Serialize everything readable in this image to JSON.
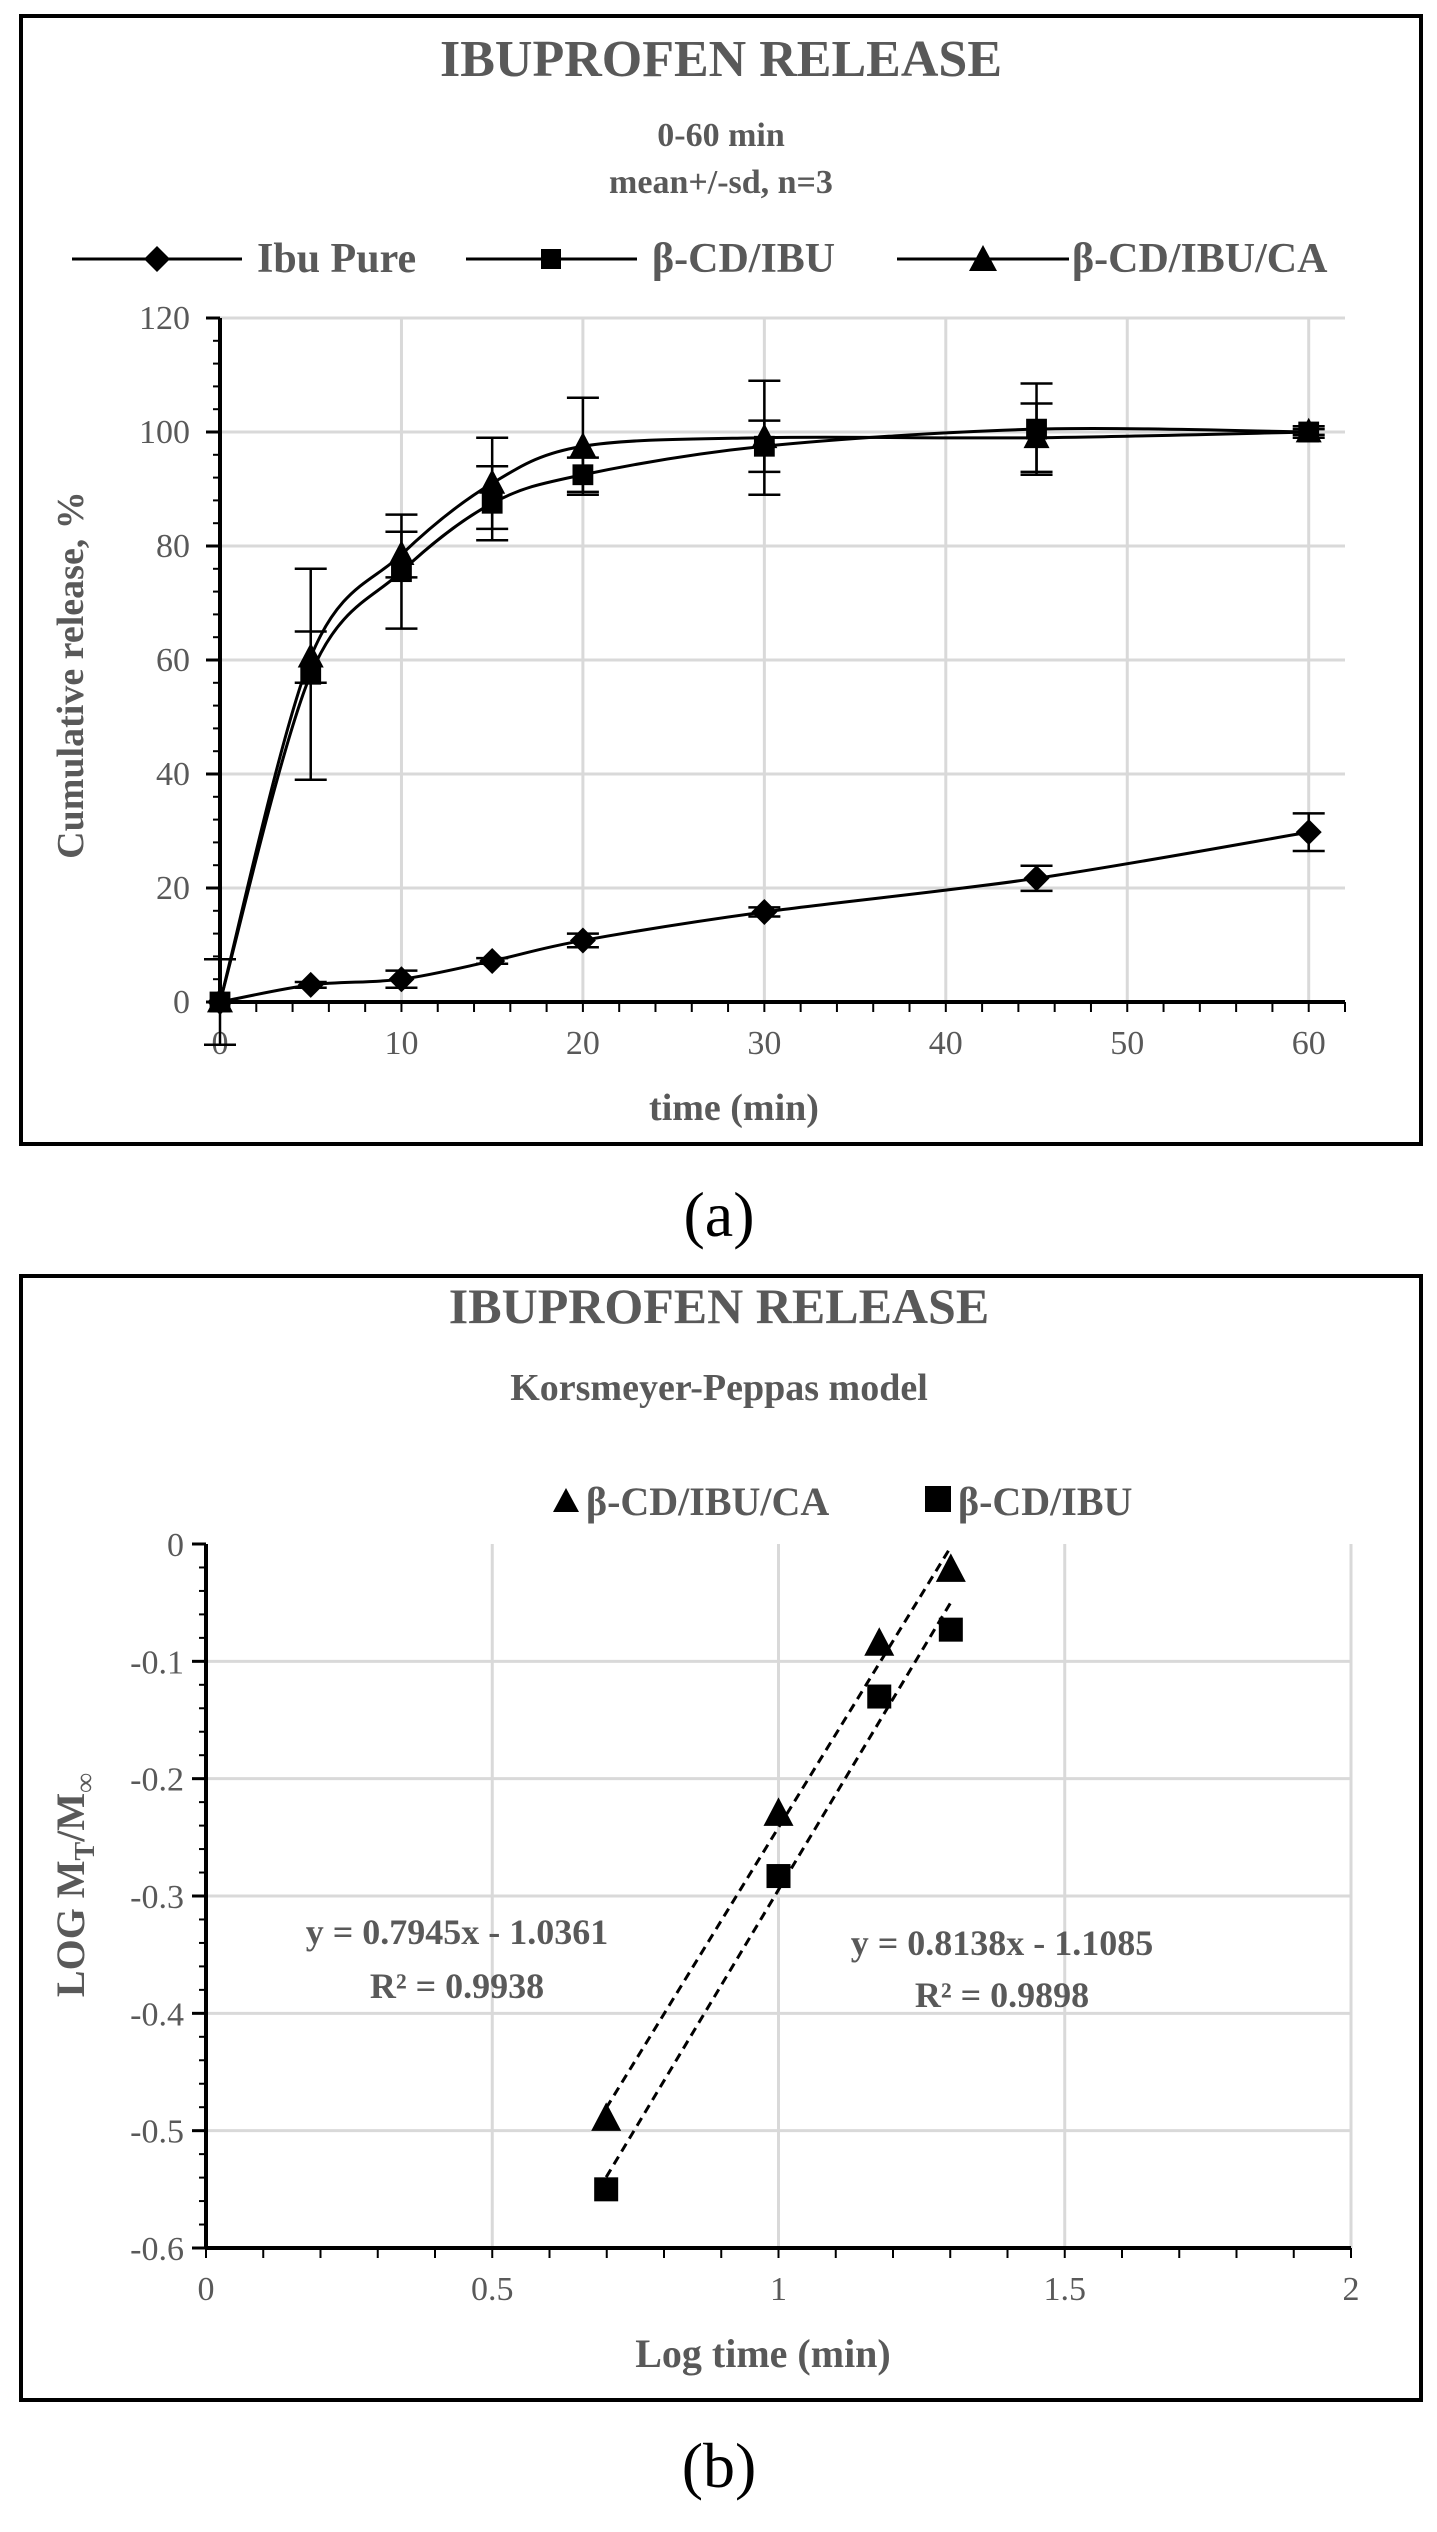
{
  "panel_a_label": "(a)",
  "panel_b_label": "(b)",
  "chart_data": [
    {
      "type": "line",
      "title": "IBUPROFEN RELEASE",
      "subtitle": [
        "0-60 min",
        "mean+/-sd, n=3"
      ],
      "xlabel": "time (min)",
      "ylabel": "Cumulative release, %",
      "xlim": [
        0,
        62
      ],
      "ylim": [
        0,
        120
      ],
      "xticks": [
        "0",
        "10",
        "20",
        "30",
        "40",
        "50",
        "60"
      ],
      "yticks": [
        "0",
        "20",
        "40",
        "60",
        "80",
        "100",
        "120"
      ],
      "grid": true,
      "legend_position": "top",
      "series": [
        {
          "name": "Ibu Pure",
          "marker": "diamond",
          "x": [
            0,
            5,
            10,
            15,
            20,
            30,
            45,
            60
          ],
          "y": [
            0,
            3,
            4,
            7.2,
            10.8,
            15.8,
            21.7,
            29.8
          ],
          "err": [
            0,
            0.5,
            1.5,
            0.5,
            1.2,
            0.8,
            2.2,
            3.3
          ]
        },
        {
          "name": "β-CD/IBU",
          "marker": "square",
          "x": [
            0,
            5,
            10,
            15,
            20,
            30,
            45,
            60
          ],
          "y": [
            0,
            57.5,
            75.5,
            87.5,
            92.5,
            97.5,
            100.5,
            100
          ],
          "err": [
            0,
            18.5,
            10,
            6.5,
            3,
            4.5,
            8,
            0.5
          ]
        },
        {
          "name": "β-CD/IBU/CA",
          "marker": "triangle",
          "x": [
            0,
            5,
            10,
            15,
            20,
            30,
            45,
            60
          ],
          "y": [
            0,
            60.5,
            78.5,
            91,
            97.5,
            99,
            99,
            100
          ],
          "err": [
            7.5,
            4.5,
            4,
            8,
            8.5,
            10,
            6,
            1
          ]
        }
      ]
    },
    {
      "type": "scatter",
      "title": "IBUPROFEN RELEASE",
      "subtitle": [
        "Korsmeyer-Peppas model"
      ],
      "xlabel": "Log time (min)",
      "ylabel_main": "LOG M",
      "ylabel_sub1": "T",
      "ylabel_slash": "/M",
      "ylabel_sub2": "∞",
      "xlim": [
        0,
        2
      ],
      "ylim": [
        -0.6,
        0
      ],
      "xticks": [
        "0",
        "0.5",
        "1",
        "1.5",
        "2"
      ],
      "yticks": [
        "0",
        "-0.1",
        "-0.2",
        "-0.3",
        "-0.4",
        "-0.5",
        "-0.6"
      ],
      "grid": true,
      "legend_position": "top",
      "series": [
        {
          "name": "β-CD/IBU/CA",
          "marker": "triangle",
          "x": [
            0.699,
            1.0,
            1.176,
            1.301
          ],
          "y": [
            -0.49,
            -0.23,
            -0.085,
            -0.022
          ],
          "trendline": {
            "slope": 0.7945,
            "intercept": -1.0361
          }
        },
        {
          "name": "β-CD/IBU",
          "marker": "square",
          "x": [
            0.699,
            1.0,
            1.176,
            1.301
          ],
          "y": [
            -0.55,
            -0.283,
            -0.13,
            -0.073
          ],
          "trendline": {
            "slope": 0.8138,
            "intercept": -1.1085
          }
        }
      ],
      "annotations": [
        {
          "line1": "y = 0.7945x - 1.0361",
          "line2": "R² = 0.9938"
        },
        {
          "line1": "y = 0.8138x - 1.1085",
          "line2": "R² = 0.9898"
        }
      ]
    }
  ]
}
